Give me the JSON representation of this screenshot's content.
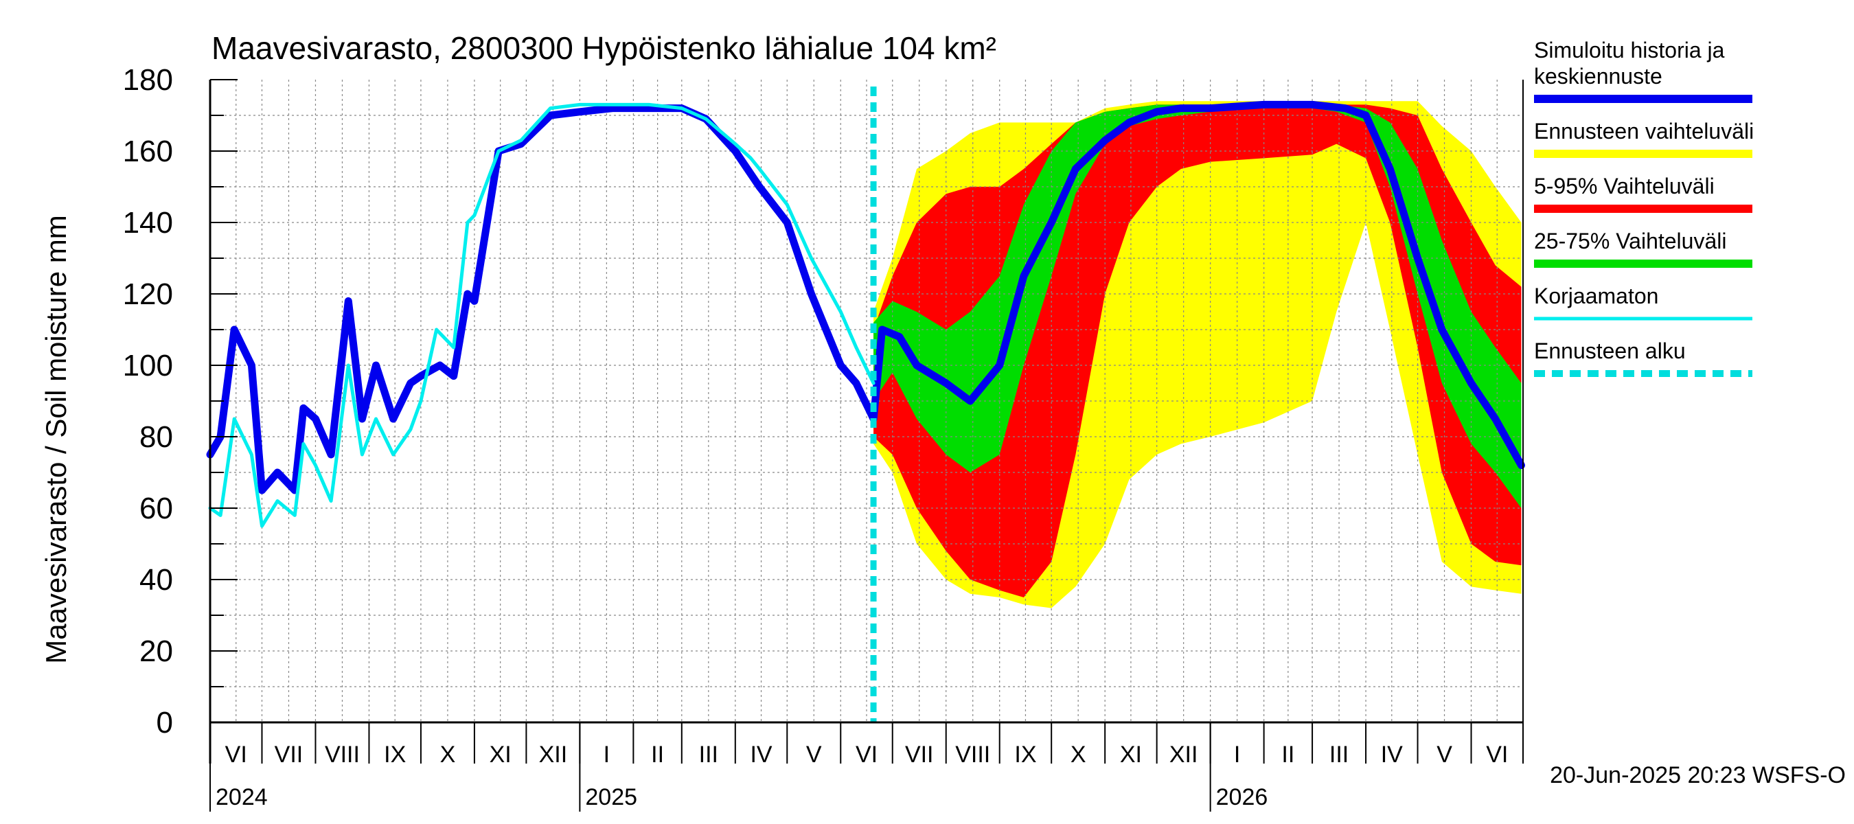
{
  "chart_data": {
    "type": "area",
    "title": "Maavesivarasto, 2800300 Hypöistenko lähialue 104 km²",
    "ylabel": "Maavesivarasto / Soil moisture   mm",
    "ylim": [
      0,
      180
    ],
    "yticks": [
      "0",
      "20",
      "40",
      "60",
      "80",
      "100",
      "120",
      "140",
      "160",
      "180"
    ],
    "xlim": [
      "2024-06-01",
      "2026-06-30"
    ],
    "grid": true,
    "forecast_start": "2025-06-20",
    "months": [
      "VI",
      "VII",
      "VIII",
      "IX",
      "X",
      "XI",
      "XII",
      "I",
      "II",
      "III",
      "IV",
      "V",
      "VI",
      "VII",
      "VIII",
      "IX",
      "X",
      "XI",
      "XII",
      "I",
      "II",
      "III",
      "IV",
      "V",
      "VI"
    ],
    "years": [
      {
        "label": "2024",
        "date": "2024-06-01"
      },
      {
        "label": "2025",
        "date": "2025-01-01"
      },
      {
        "label": "2026",
        "date": "2026-01-01"
      }
    ],
    "timestamp": "20-Jun-2025 20:23 WSFS-O",
    "legend_position": "right",
    "legend": [
      {
        "label": "Simuloitu historia ja keskiennuste",
        "lines": [
          "Simuloitu historia ja",
          "keskiennuste"
        ],
        "color": "#0000ee",
        "style": "solid"
      },
      {
        "label": "Ennusteen vaihteluväli",
        "lines": [
          "Ennusteen vaihteluväli"
        ],
        "color": "#ffff00",
        "style": "solid"
      },
      {
        "label": "5-95% Vaihteluväli",
        "lines": [
          "5-95% Vaihteluväli"
        ],
        "color": "#ff0000",
        "style": "solid"
      },
      {
        "label": "25-75% Vaihteluväli",
        "lines": [
          "25-75% Vaihteluväli"
        ],
        "color": "#00dd00",
        "style": "solid"
      },
      {
        "label": "Korjaamaton",
        "lines": [
          "Korjaamaton"
        ],
        "color": "#00eeee",
        "style": "solid"
      },
      {
        "label": "Ennusteen alku",
        "lines": [
          "Ennusteen alku"
        ],
        "color": "#00dddd",
        "style": "dashed"
      }
    ],
    "series": [
      {
        "name": "Simuloitu historia ja keskiennuste",
        "color": "#0000ee",
        "x": [
          "2024-06-01",
          "2024-06-07",
          "2024-06-15",
          "2024-06-25",
          "2024-07-01",
          "2024-07-10",
          "2024-07-20",
          "2024-07-25",
          "2024-08-01",
          "2024-08-10",
          "2024-08-20",
          "2024-08-28",
          "2024-09-05",
          "2024-09-15",
          "2024-09-25",
          "2024-10-01",
          "2024-10-12",
          "2024-10-20",
          "2024-10-28",
          "2024-11-01",
          "2024-11-15",
          "2024-11-28",
          "2024-12-15",
          "2025-01-01",
          "2025-01-20",
          "2025-02-10",
          "2025-03-01",
          "2025-03-15",
          "2025-04-01",
          "2025-04-15",
          "2025-05-01",
          "2025-05-15",
          "2025-06-01",
          "2025-06-10",
          "2025-06-20",
          "2025-06-25",
          "2025-07-05",
          "2025-07-15",
          "2025-08-01",
          "2025-08-15",
          "2025-09-01",
          "2025-09-15",
          "2025-10-01",
          "2025-10-15",
          "2025-11-01",
          "2025-11-15",
          "2025-12-01",
          "2025-12-15",
          "2026-01-01",
          "2026-02-01",
          "2026-03-01",
          "2026-03-20",
          "2026-04-01",
          "2026-04-15",
          "2026-05-01",
          "2026-05-15",
          "2026-06-01",
          "2026-06-15",
          "2026-06-30"
        ],
        "y": [
          75,
          80,
          110,
          100,
          65,
          70,
          65,
          88,
          85,
          75,
          118,
          85,
          100,
          85,
          95,
          97,
          100,
          97,
          120,
          118,
          160,
          162,
          170,
          171,
          172,
          172,
          172,
          169,
          160,
          150,
          140,
          120,
          100,
          95,
          85,
          110,
          108,
          100,
          95,
          90,
          100,
          125,
          140,
          155,
          163,
          168,
          171,
          172,
          172,
          173,
          173,
          172,
          170,
          155,
          130,
          110,
          95,
          85,
          72
        ]
      },
      {
        "name": "Korjaamaton",
        "color": "#00eeee",
        "x": [
          "2024-06-01",
          "2024-06-07",
          "2024-06-15",
          "2024-06-25",
          "2024-07-01",
          "2024-07-10",
          "2024-07-20",
          "2024-07-25",
          "2024-08-01",
          "2024-08-10",
          "2024-08-20",
          "2024-08-28",
          "2024-09-05",
          "2024-09-15",
          "2024-09-25",
          "2024-10-01",
          "2024-10-10",
          "2024-10-20",
          "2024-10-28",
          "2024-11-01",
          "2024-11-15",
          "2024-11-28",
          "2024-12-15",
          "2025-01-01",
          "2025-01-20",
          "2025-02-10",
          "2025-03-01",
          "2025-03-15",
          "2025-04-01",
          "2025-04-10",
          "2025-04-15",
          "2025-05-01",
          "2025-05-15",
          "2025-06-01",
          "2025-06-10",
          "2025-06-20"
        ],
        "y": [
          60,
          58,
          85,
          75,
          55,
          62,
          58,
          78,
          72,
          62,
          100,
          75,
          85,
          75,
          82,
          90,
          110,
          105,
          140,
          142,
          160,
          163,
          172,
          173,
          173,
          173,
          172,
          169,
          162,
          158,
          155,
          145,
          130,
          115,
          105,
          95
        ]
      }
    ],
    "bands": [
      {
        "name": "Ennusteen vaihteluväli",
        "color": "#ffff00",
        "x": [
          "2025-06-20",
          "2025-07-01",
          "2025-07-15",
          "2025-08-01",
          "2025-08-15",
          "2025-09-01",
          "2025-09-15",
          "2025-10-01",
          "2025-10-15",
          "2025-11-01",
          "2025-11-15",
          "2025-12-01",
          "2025-12-15",
          "2026-01-01",
          "2026-02-01",
          "2026-03-01",
          "2026-03-15",
          "2026-04-01",
          "2026-04-15",
          "2026-05-01",
          "2026-05-15",
          "2026-06-01",
          "2026-06-15",
          "2026-06-30"
        ],
        "low": [
          78,
          70,
          50,
          40,
          36,
          35,
          33,
          32,
          38,
          50,
          68,
          75,
          78,
          80,
          84,
          90,
          115,
          140,
          110,
          75,
          45,
          38,
          37,
          36
        ],
        "high": [
          115,
          130,
          155,
          160,
          165,
          168,
          168,
          168,
          168,
          172,
          173,
          174,
          174,
          174,
          174,
          174,
          174,
          174,
          174,
          174,
          167,
          160,
          150,
          140
        ]
      },
      {
        "name": "5-95% Vaihteluväli",
        "color": "#ff0000",
        "x": [
          "2025-06-20",
          "2025-07-01",
          "2025-07-15",
          "2025-08-01",
          "2025-08-15",
          "2025-09-01",
          "2025-09-15",
          "2025-10-01",
          "2025-10-15",
          "2025-11-01",
          "2025-11-15",
          "2025-12-01",
          "2025-12-15",
          "2026-01-01",
          "2026-02-01",
          "2026-03-01",
          "2026-03-15",
          "2026-04-01",
          "2026-04-15",
          "2026-05-01",
          "2026-05-15",
          "2026-06-01",
          "2026-06-15",
          "2026-06-30"
        ],
        "low": [
          80,
          75,
          60,
          48,
          40,
          37,
          35,
          45,
          75,
          120,
          140,
          150,
          155,
          157,
          158,
          159,
          162,
          158,
          140,
          105,
          70,
          50,
          45,
          44
        ],
        "high": [
          110,
          125,
          140,
          148,
          150,
          150,
          155,
          162,
          168,
          171,
          172,
          173,
          173,
          173,
          173,
          173,
          173,
          173,
          172,
          170,
          155,
          140,
          128,
          122
        ]
      },
      {
        "name": "25-75% Vaihteluväli",
        "color": "#00dd00",
        "x": [
          "2025-06-20",
          "2025-07-01",
          "2025-07-15",
          "2025-08-01",
          "2025-08-15",
          "2025-09-01",
          "2025-09-15",
          "2025-10-01",
          "2025-10-15",
          "2025-11-01",
          "2025-11-15",
          "2025-12-01",
          "2025-12-15",
          "2026-01-01",
          "2026-02-01",
          "2026-03-01",
          "2026-03-15",
          "2026-04-01",
          "2026-04-15",
          "2026-05-01",
          "2026-05-15",
          "2026-06-01",
          "2026-06-15",
          "2026-06-30"
        ],
        "low": [
          90,
          98,
          85,
          75,
          70,
          75,
          100,
          125,
          148,
          162,
          167,
          169,
          170,
          171,
          172,
          172,
          171,
          168,
          150,
          120,
          95,
          78,
          70,
          60
        ],
        "high": [
          112,
          118,
          115,
          110,
          115,
          125,
          145,
          160,
          168,
          171,
          172,
          173,
          173,
          173,
          173,
          173,
          173,
          172,
          168,
          155,
          135,
          115,
          105,
          95
        ]
      }
    ]
  }
}
